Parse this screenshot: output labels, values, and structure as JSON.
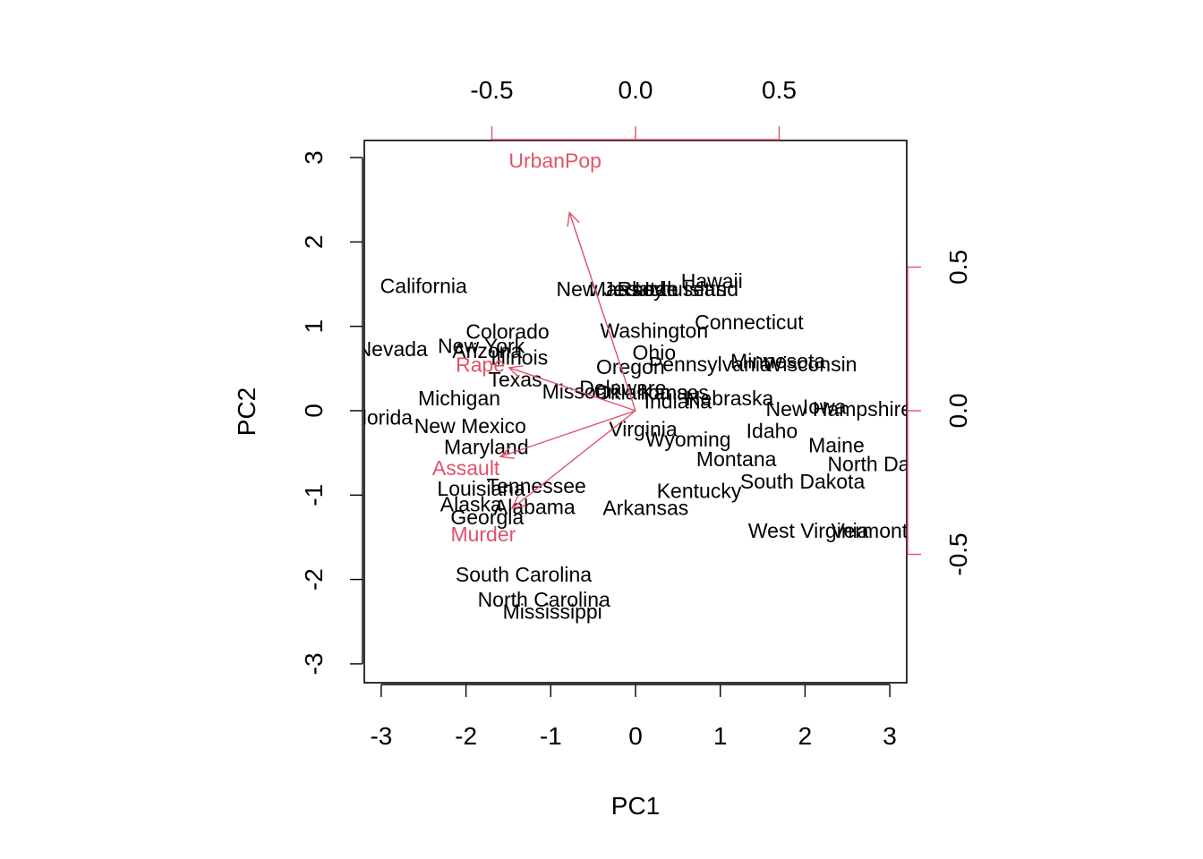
{
  "colors": {
    "points": "#000000",
    "loadings": "#DF536B",
    "axis": "#000000"
  },
  "chart_data": {
    "type": "biplot",
    "xlabel": "PC1",
    "ylabel": "PC2",
    "scores_axes": {
      "xlim": [
        -3.2,
        3.2
      ],
      "ylim": [
        -3.2,
        3.2
      ],
      "xticks": [
        -3,
        -2,
        -1,
        0,
        1,
        2,
        3
      ],
      "yticks": [
        -3,
        -2,
        -1,
        0,
        1,
        2,
        3
      ]
    },
    "loadings_axes": {
      "xlim": [
        -1,
        1
      ],
      "ylim": [
        -1,
        1
      ],
      "xticks": [
        -0.5,
        0.0,
        0.5
      ],
      "yticks": [
        -0.5,
        0.0,
        0.5
      ],
      "xtick_labels": [
        "-0.5",
        "0.0",
        "0.5"
      ],
      "ytick_labels": [
        "-0.5",
        "0.0",
        "0.5"
      ]
    },
    "points": [
      {
        "label": "California",
        "x": -2.5,
        "y": 1.48
      },
      {
        "label": "Nevada",
        "x": -2.87,
        "y": 0.73
      },
      {
        "label": "Florida",
        "x": -3.0,
        "y": -0.08
      },
      {
        "label": "Colorado",
        "x": -1.51,
        "y": 0.94
      },
      {
        "label": "New York",
        "x": -1.82,
        "y": 0.77
      },
      {
        "label": "Arizona",
        "x": -1.75,
        "y": 0.71
      },
      {
        "label": "Illinois",
        "x": -1.37,
        "y": 0.63
      },
      {
        "label": "Texas",
        "x": -1.42,
        "y": 0.37
      },
      {
        "label": "Michigan",
        "x": -2.08,
        "y": 0.15
      },
      {
        "label": "New Mexico",
        "x": -1.95,
        "y": -0.18
      },
      {
        "label": "Maryland",
        "x": -1.76,
        "y": -0.43
      },
      {
        "label": "Louisiana",
        "x": -1.82,
        "y": -0.92
      },
      {
        "label": "Tennessee",
        "x": -1.17,
        "y": -0.89
      },
      {
        "label": "Alaska",
        "x": -1.94,
        "y": -1.11
      },
      {
        "label": "Alabama",
        "x": -1.19,
        "y": -1.14
      },
      {
        "label": "Georgia",
        "x": -1.75,
        "y": -1.26
      },
      {
        "label": "South Carolina",
        "x": -1.32,
        "y": -1.94
      },
      {
        "label": "North Carolina",
        "x": -1.08,
        "y": -2.24
      },
      {
        "label": "Mississippi",
        "x": -0.98,
        "y": -2.38
      },
      {
        "label": "Missouri",
        "x": -0.65,
        "y": 0.23
      },
      {
        "label": "Delaware",
        "x": -0.15,
        "y": 0.27
      },
      {
        "label": "Oklahoma",
        "x": 0.07,
        "y": 0.22
      },
      {
        "label": "Kansas",
        "x": 0.46,
        "y": 0.22
      },
      {
        "label": "Indiana",
        "x": 0.5,
        "y": 0.11
      },
      {
        "label": "Arkansas",
        "x": 0.12,
        "y": -1.15
      },
      {
        "label": "New Jersey",
        "x": -0.3,
        "y": 1.44
      },
      {
        "label": "Massachusetts",
        "x": 0.26,
        "y": 1.44
      },
      {
        "label": "Rhode Island",
        "x": 0.5,
        "y": 1.44
      },
      {
        "label": "Utah",
        "x": 0.25,
        "y": 1.44
      },
      {
        "label": "Hawaii",
        "x": 0.9,
        "y": 1.54
      },
      {
        "label": "Washington",
        "x": 0.22,
        "y": 0.95
      },
      {
        "label": "Connecticut",
        "x": 1.34,
        "y": 1.05
      },
      {
        "label": "Ohio",
        "x": 0.22,
        "y": 0.69
      },
      {
        "label": "Oregon",
        "x": -0.06,
        "y": 0.52
      },
      {
        "label": "Pennsylvania",
        "x": 0.88,
        "y": 0.55
      },
      {
        "label": "Minnesota",
        "x": 1.68,
        "y": 0.59
      },
      {
        "label": "Wisconsin",
        "x": 2.06,
        "y": 0.55
      },
      {
        "label": "Nebraska",
        "x": 1.11,
        "y": 0.15
      },
      {
        "label": "Virginia",
        "x": 0.09,
        "y": -0.22
      },
      {
        "label": "Wyoming",
        "x": 0.62,
        "y": -0.34
      },
      {
        "label": "Iowa",
        "x": 2.23,
        "y": 0.05
      },
      {
        "label": "New Hampshire",
        "x": 2.4,
        "y": 0.02
      },
      {
        "label": "Idaho",
        "x": 1.61,
        "y": -0.24
      },
      {
        "label": "Maine",
        "x": 2.37,
        "y": -0.41
      },
      {
        "label": "Montana",
        "x": 1.19,
        "y": -0.57
      },
      {
        "label": "North Dakota",
        "x": 2.98,
        "y": -0.63
      },
      {
        "label": "South Dakota",
        "x": 1.97,
        "y": -0.84
      },
      {
        "label": "Kentucky",
        "x": 0.75,
        "y": -0.95
      },
      {
        "label": "West Virginia",
        "x": 2.04,
        "y": -1.42
      },
      {
        "label": "Vermont",
        "x": 2.76,
        "y": -1.42
      }
    ],
    "loadings": [
      {
        "name": "UrbanPop",
        "x": -0.23,
        "y": 0.69,
        "label_x": -0.28,
        "label_y": 0.87
      },
      {
        "name": "Rape",
        "x": -0.44,
        "y": 0.15,
        "label_x": -0.54,
        "label_y": 0.16
      },
      {
        "name": "Assault",
        "x": -0.47,
        "y": -0.16,
        "label_x": -0.59,
        "label_y": -0.2
      },
      {
        "name": "Murder",
        "x": -0.43,
        "y": -0.34,
        "label_x": -0.53,
        "label_y": -0.43
      }
    ]
  }
}
